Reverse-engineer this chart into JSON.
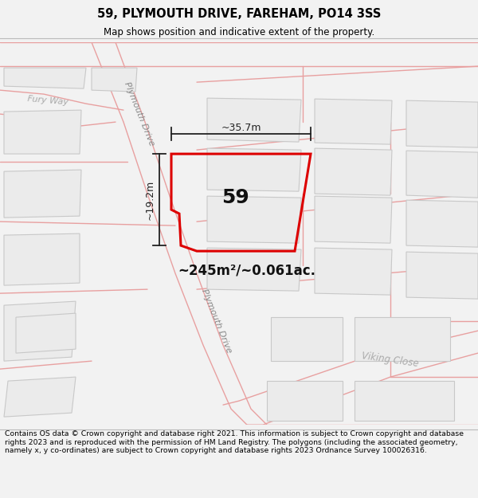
{
  "title": "59, PLYMOUTH DRIVE, FAREHAM, PO14 3SS",
  "subtitle": "Map shows position and indicative extent of the property.",
  "footer": "Contains OS data © Crown copyright and database right 2021. This information is subject to Crown copyright and database rights 2023 and is reproduced with the permission of HM Land Registry. The polygons (including the associated geometry, namely x, y co-ordinates) are subject to Crown copyright and database rights 2023 Ordnance Survey 100026316.",
  "map_bg": "#ffffff",
  "building_fc": "#ebebeb",
  "building_ec": "#c8c8c8",
  "road_line_color": "#e8a0a0",
  "road_lw": 1.0,
  "highlight_color": "#dd0000",
  "dim_color": "#222222",
  "area_text": "~245m²/~0.061ac.",
  "property_label": "59",
  "dim_width": "~35.7m",
  "dim_height": "~19.2m",
  "road_label_plym1": "Plymouth Drive",
  "road_label_plym2": "Plymouth Drive",
  "road_label_viking": "Viking Close",
  "road_label_fury": "Fury Way"
}
